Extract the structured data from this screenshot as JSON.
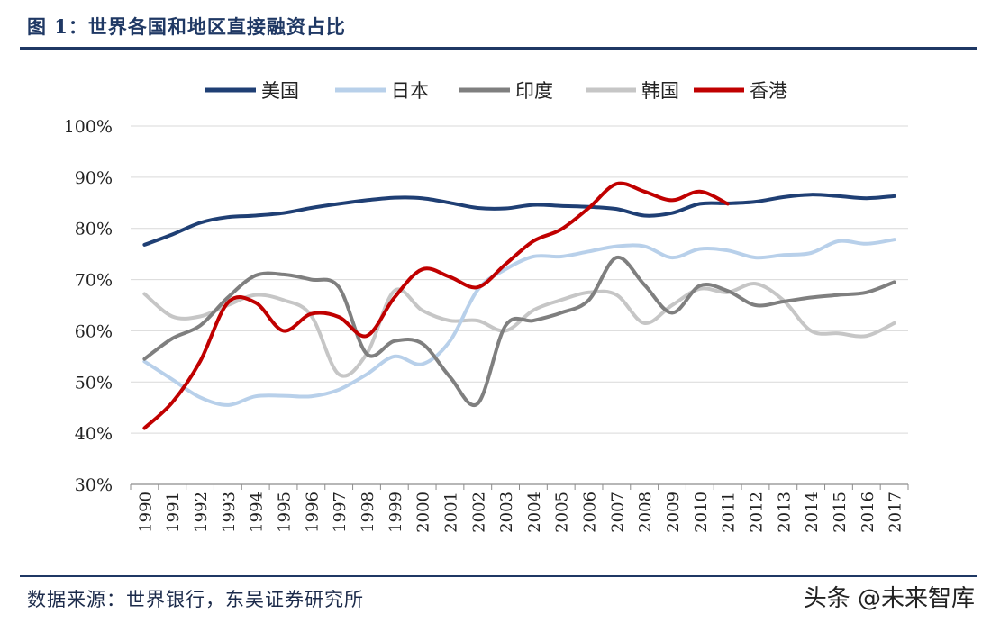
{
  "header": {
    "title": "图 1：世界各国和地区直接融资占比"
  },
  "footer": {
    "source": "数据来源：世界银行，东吴证券研究所",
    "watermark": "头条 @未来智库"
  },
  "chart_data": {
    "type": "line",
    "y_unit": "%",
    "ylim": [
      30,
      100
    ],
    "y_ticks": [
      "30%",
      "40%",
      "50%",
      "60%",
      "70%",
      "80%",
      "90%",
      "100%"
    ],
    "grid": true,
    "legend_position": "top",
    "categories": [
      "1990",
      "1991",
      "1992",
      "1993",
      "1994",
      "1995",
      "1996",
      "1997",
      "1998",
      "1999",
      "2000",
      "2001",
      "2002",
      "2003",
      "2004",
      "2005",
      "2006",
      "2007",
      "2008",
      "2009",
      "2010",
      "2011",
      "2012",
      "2013",
      "2014",
      "2015",
      "2016",
      "2017"
    ],
    "series": [
      {
        "name": "美国",
        "color": "#1f3f74",
        "values": [
          76.8,
          78.8,
          81.1,
          82.2,
          82.5,
          83.0,
          84.0,
          84.8,
          85.5,
          86.0,
          85.9,
          85.0,
          84.0,
          83.9,
          84.6,
          84.4,
          84.2,
          83.8,
          82.5,
          83.0,
          84.8,
          84.9,
          85.2,
          86.1,
          86.6,
          86.3,
          85.9,
          86.3
        ]
      },
      {
        "name": "日本",
        "color": "#b8d0ea",
        "values": [
          54.0,
          50.5,
          47.0,
          45.5,
          47.2,
          47.3,
          47.2,
          48.5,
          51.5,
          55.0,
          53.5,
          58.0,
          68.0,
          72.0,
          74.5,
          74.5,
          75.5,
          76.5,
          76.5,
          74.3,
          76.0,
          75.7,
          74.3,
          74.8,
          75.2,
          77.5,
          77.0,
          77.8
        ]
      },
      {
        "name": "印度",
        "color": "#7f7f7f",
        "values": [
          54.5,
          58.5,
          61.0,
          66.5,
          70.8,
          71.0,
          70.0,
          68.5,
          55.5,
          58.0,
          57.5,
          51.0,
          45.8,
          61.0,
          62.0,
          63.5,
          66.0,
          74.3,
          69.0,
          63.5,
          68.8,
          67.8,
          65.0,
          65.7,
          66.5,
          67.0,
          67.5,
          69.5
        ]
      },
      {
        "name": "韩国",
        "color": "#c6c6c6",
        "values": [
          67.2,
          62.8,
          62.8,
          65.0,
          67.0,
          66.0,
          63.0,
          51.5,
          55.5,
          67.8,
          64.0,
          62.0,
          62.0,
          60.0,
          64.0,
          66.0,
          67.5,
          67.0,
          61.5,
          65.0,
          68.2,
          67.5,
          69.2,
          66.0,
          60.0,
          59.5,
          59.0,
          61.5
        ]
      },
      {
        "name": "香港",
        "color": "#c00000",
        "values": [
          41.0,
          46.0,
          54.0,
          65.5,
          65.5,
          60.0,
          63.3,
          62.7,
          59.0,
          66.5,
          72.0,
          70.5,
          68.5,
          73.0,
          77.5,
          79.8,
          84.0,
          88.7,
          87.2,
          85.5,
          87.2,
          84.8,
          null,
          null,
          null,
          null,
          null,
          null
        ]
      }
    ]
  }
}
